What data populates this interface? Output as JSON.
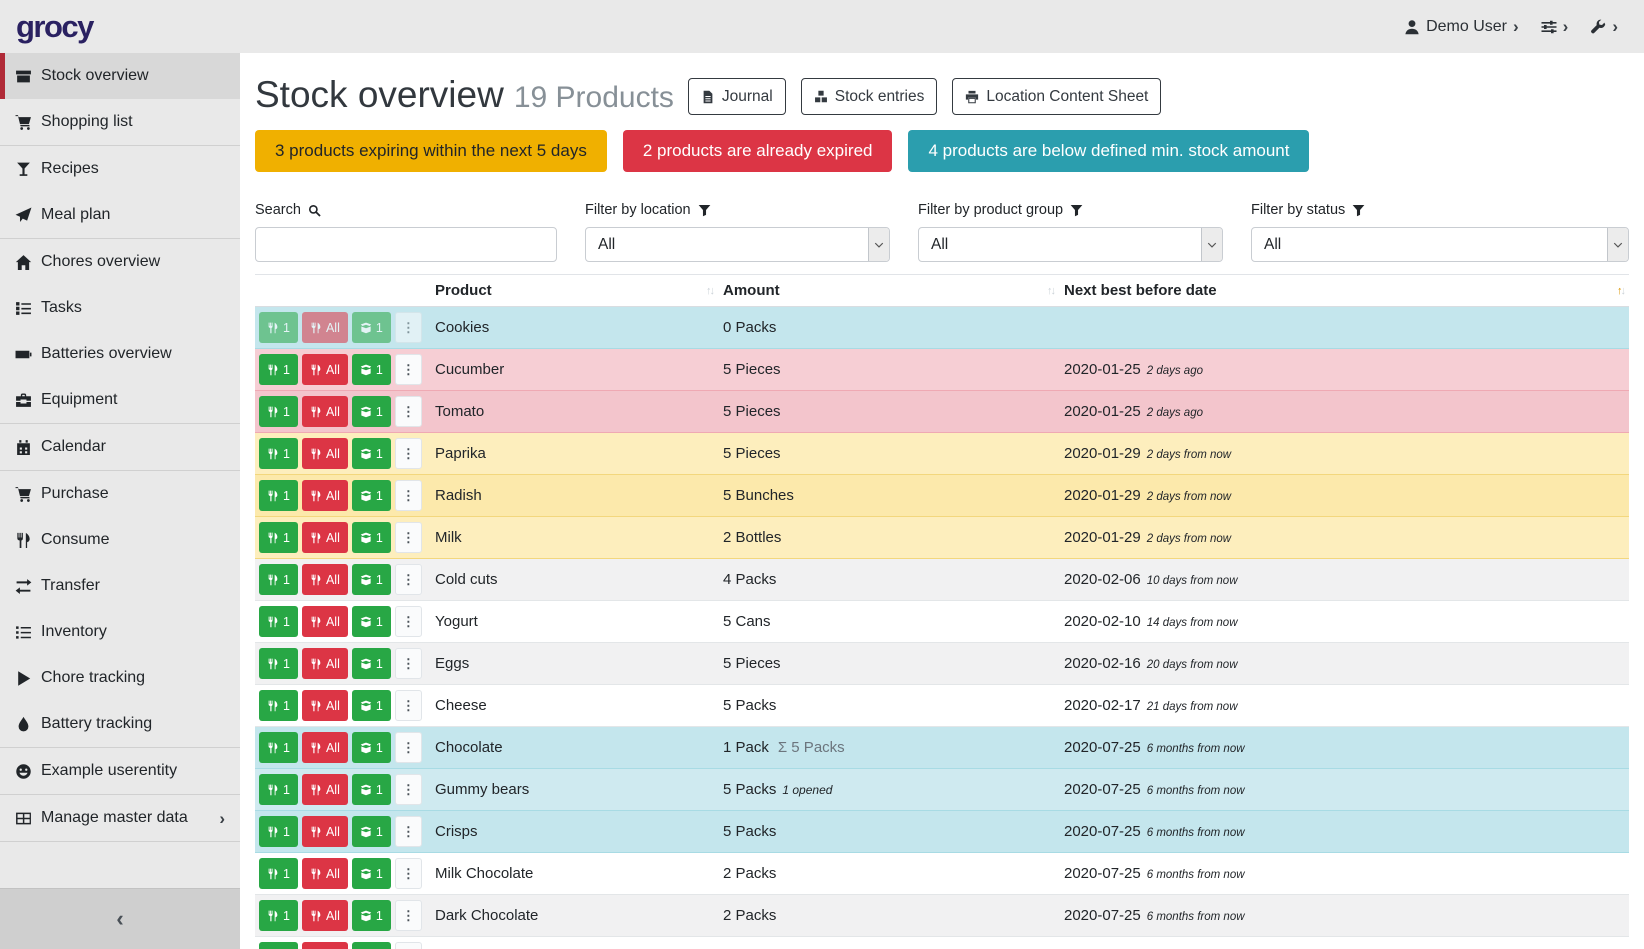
{
  "app": {
    "logo_text": "grocy"
  },
  "topbar": {
    "menus": [
      {
        "name": "user-menu",
        "icon": "user",
        "label": "Demo User"
      },
      {
        "name": "settings-menu",
        "icon": "sliders",
        "label": ""
      },
      {
        "name": "admin-menu",
        "icon": "wrench",
        "label": ""
      }
    ]
  },
  "sidebar": {
    "items": [
      {
        "label": "Stock overview",
        "icon": "box",
        "active": true
      },
      {
        "label": "Shopping list",
        "icon": "cart",
        "divider_after": true
      },
      {
        "label": "Recipes",
        "icon": "glass"
      },
      {
        "label": "Meal plan",
        "icon": "paper-plane",
        "divider_after": true
      },
      {
        "label": "Chores overview",
        "icon": "home"
      },
      {
        "label": "Tasks",
        "icon": "tasks"
      },
      {
        "label": "Batteries overview",
        "icon": "battery"
      },
      {
        "label": "Equipment",
        "icon": "toolbox",
        "divider_after": true
      },
      {
        "label": "Calendar",
        "icon": "calendar",
        "divider_after": true
      },
      {
        "label": "Purchase",
        "icon": "cart"
      },
      {
        "label": "Consume",
        "icon": "utensils"
      },
      {
        "label": "Transfer",
        "icon": "transfer"
      },
      {
        "label": "Inventory",
        "icon": "list"
      },
      {
        "label": "Chore tracking",
        "icon": "play"
      },
      {
        "label": "Battery tracking",
        "icon": "drop",
        "divider_after": true
      },
      {
        "label": "Example userentity",
        "icon": "smiley",
        "divider_after": true
      },
      {
        "label": "Manage master data",
        "icon": "grid",
        "chevron": true,
        "divider_after": true
      }
    ],
    "collapse_chevron": "‹"
  },
  "page": {
    "title": "Stock overview",
    "subtitle": "19 Products",
    "toolbar_buttons": [
      {
        "label": "Journal",
        "icon": "file"
      },
      {
        "label": "Stock entries",
        "icon": "boxes"
      },
      {
        "label": "Location Content Sheet",
        "icon": "printer"
      }
    ]
  },
  "banners": [
    {
      "text": "3 products expiring within the next 5 days",
      "type": "warning",
      "color": "#f0b000"
    },
    {
      "text": "2 products are already expired",
      "type": "danger",
      "color": "#dc3545"
    },
    {
      "text": "4 products are below defined min. stock amount",
      "type": "info",
      "color": "#2b9eae"
    }
  ],
  "filters": {
    "search": {
      "label": "Search",
      "icon": "magnifier",
      "value": "",
      "placeholder": ""
    },
    "selects": [
      {
        "name": "location",
        "label": "Filter by location",
        "icon": "funnel",
        "value": "All"
      },
      {
        "name": "product-group",
        "label": "Filter by product group",
        "icon": "funnel",
        "value": "All"
      },
      {
        "name": "status",
        "label": "Filter by status",
        "icon": "funnel",
        "value": "All"
      }
    ]
  },
  "table": {
    "columns": [
      {
        "label": "",
        "name": "actions",
        "sort": null
      },
      {
        "label": "Product",
        "name": "product",
        "sort": "none"
      },
      {
        "label": "Amount",
        "name": "amount",
        "sort": "none"
      },
      {
        "label": "Next best before date",
        "name": "next-best-before-date",
        "sort": "asc"
      }
    ],
    "row_buttons": {
      "consume_one": "1",
      "consume_all": "All",
      "open_one": "1"
    },
    "sum_symbol": "Σ",
    "rows": [
      {
        "product": "Cookies",
        "amount": "0 Packs",
        "date": "",
        "relative": "",
        "status": "info",
        "muted": true
      },
      {
        "product": "Cucumber",
        "amount": "5 Pieces",
        "date": "2020-01-25",
        "relative": "2 days ago",
        "status": "danger"
      },
      {
        "product": "Tomato",
        "amount": "5 Pieces",
        "date": "2020-01-25",
        "relative": "2 days ago",
        "status": "danger"
      },
      {
        "product": "Paprika",
        "amount": "5 Pieces",
        "date": "2020-01-29",
        "relative": "2 days from now",
        "status": "warning"
      },
      {
        "product": "Radish",
        "amount": "5 Bunches",
        "date": "2020-01-29",
        "relative": "2 days from now",
        "status": "warning"
      },
      {
        "product": "Milk",
        "amount": "2 Bottles",
        "date": "2020-01-29",
        "relative": "2 days from now",
        "status": "warning"
      },
      {
        "product": "Cold cuts",
        "amount": "4 Packs",
        "date": "2020-02-06",
        "relative": "10 days from now",
        "status": ""
      },
      {
        "product": "Yogurt",
        "amount": "5 Cans",
        "date": "2020-02-10",
        "relative": "14 days from now",
        "status": ""
      },
      {
        "product": "Eggs",
        "amount": "5 Pieces",
        "date": "2020-02-16",
        "relative": "20 days from now",
        "status": ""
      },
      {
        "product": "Cheese",
        "amount": "5 Packs",
        "date": "2020-02-17",
        "relative": "21 days from now",
        "status": ""
      },
      {
        "product": "Chocolate",
        "amount": "1 Pack",
        "amount_sum": "5 Packs",
        "date": "2020-07-25",
        "relative": "6 months from now",
        "status": "info"
      },
      {
        "product": "Gummy bears",
        "amount": "5 Packs",
        "amount_note": "1 opened",
        "date": "2020-07-25",
        "relative": "6 months from now",
        "status": "info"
      },
      {
        "product": "Crisps",
        "amount": "5 Packs",
        "date": "2020-07-25",
        "relative": "6 months from now",
        "status": "info"
      },
      {
        "product": "Milk Chocolate",
        "amount": "2 Packs",
        "date": "2020-07-25",
        "relative": "6 months from now",
        "status": ""
      },
      {
        "product": "Dark Chocolate",
        "amount": "2 Packs",
        "date": "2020-07-25",
        "relative": "6 months from now",
        "status": ""
      },
      {
        "product": "",
        "amount": "",
        "date": "",
        "relative": "",
        "status": "",
        "partial": true
      }
    ]
  }
}
